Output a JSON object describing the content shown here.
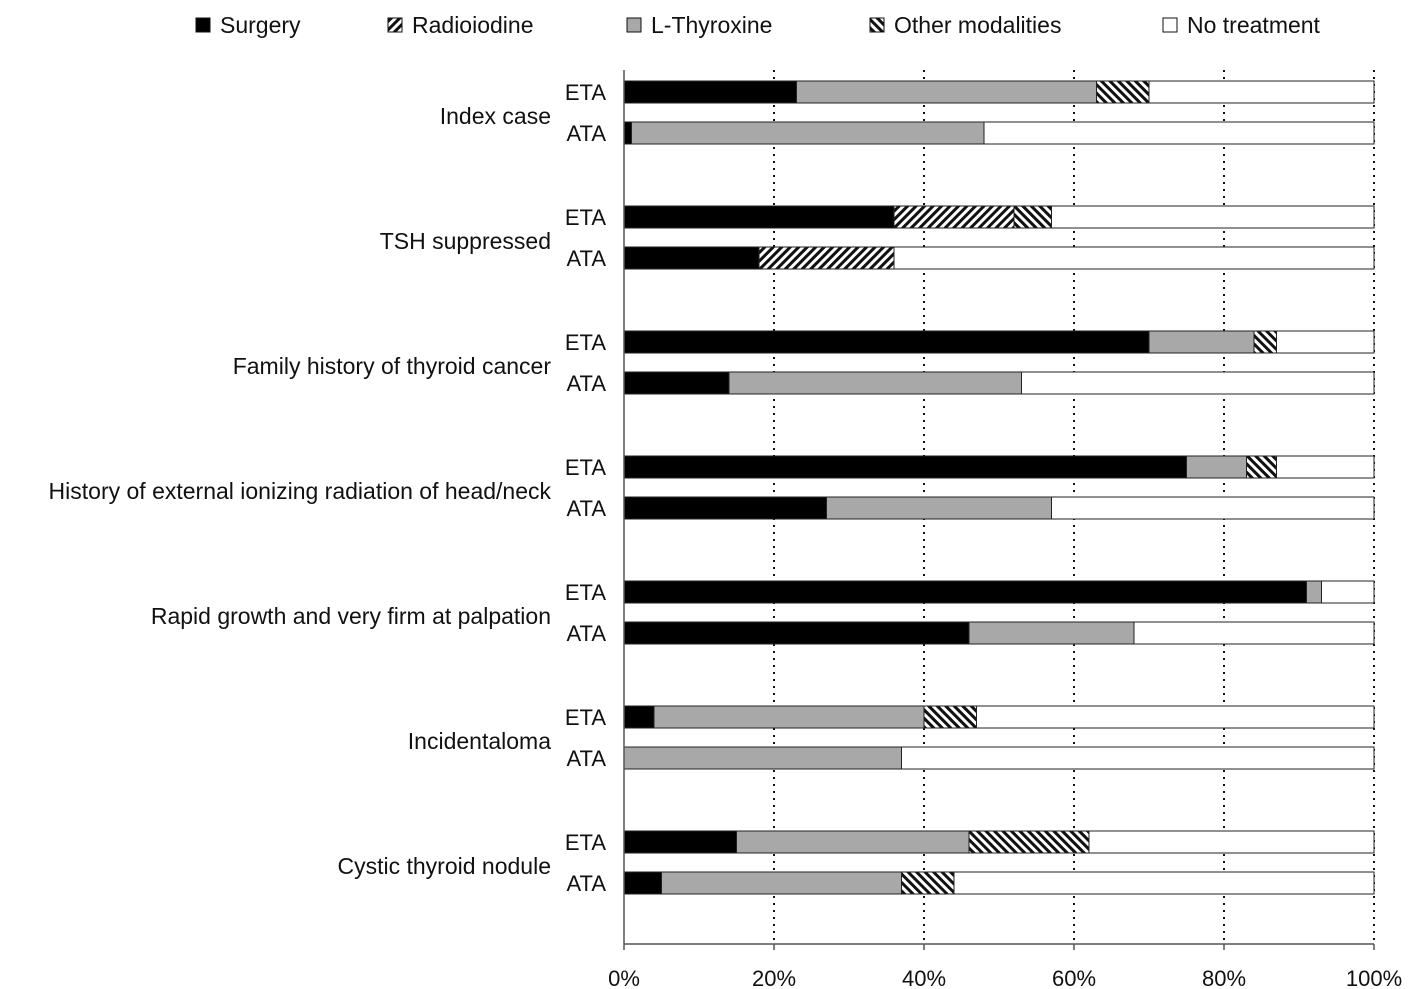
{
  "chart_data": {
    "type": "bar",
    "orientation": "horizontal",
    "stacked": true,
    "normalized": true,
    "xlim": [
      0,
      100
    ],
    "x_ticks": [
      "0%",
      "20%",
      "40%",
      "60%",
      "80%",
      "100%"
    ],
    "grid": "vertical dotted lines at 20% intervals",
    "legend_position": "top",
    "legend": [
      {
        "key": "surgery",
        "label": "Surgery",
        "style": "solid black"
      },
      {
        "key": "radioiodine",
        "label": "Radioiodine",
        "style": "diagonal hatch"
      },
      {
        "key": "lthyroxine",
        "label": "L-Thyroxine",
        "style": "solid grey"
      },
      {
        "key": "other",
        "label": "Other modalities",
        "style": "reverse diagonal hatch"
      },
      {
        "key": "none",
        "label": "No treatment",
        "style": "white"
      }
    ],
    "groups": [
      {
        "label": "Index case",
        "bars": [
          {
            "label": "ETA",
            "values": {
              "surgery": 23,
              "radioiodine": 0,
              "lthyroxine": 40,
              "other": 7,
              "none": 30
            }
          },
          {
            "label": "ATA",
            "values": {
              "surgery": 1,
              "radioiodine": 0,
              "lthyroxine": 47,
              "other": 0,
              "none": 52
            }
          }
        ]
      },
      {
        "label": "TSH suppressed",
        "bars": [
          {
            "label": "ETA",
            "values": {
              "surgery": 36,
              "radioiodine": 16,
              "lthyroxine": 0,
              "other": 5,
              "none": 43
            }
          },
          {
            "label": "ATA",
            "values": {
              "surgery": 18,
              "radioiodine": 18,
              "lthyroxine": 0,
              "other": 0,
              "none": 64
            }
          }
        ]
      },
      {
        "label": "Family history of thyroid cancer",
        "bars": [
          {
            "label": "ETA",
            "values": {
              "surgery": 70,
              "radioiodine": 0,
              "lthyroxine": 14,
              "other": 3,
              "none": 13
            }
          },
          {
            "label": "ATA",
            "values": {
              "surgery": 14,
              "radioiodine": 0,
              "lthyroxine": 39,
              "other": 0,
              "none": 47
            }
          }
        ]
      },
      {
        "label": "History of external ionizing radiation of head/neck",
        "bars": [
          {
            "label": "ETA",
            "values": {
              "surgery": 75,
              "radioiodine": 0,
              "lthyroxine": 8,
              "other": 4,
              "none": 13
            }
          },
          {
            "label": "ATA",
            "values": {
              "surgery": 27,
              "radioiodine": 0,
              "lthyroxine": 30,
              "other": 0,
              "none": 43
            }
          }
        ]
      },
      {
        "label": "Rapid growth and very firm at palpation",
        "bars": [
          {
            "label": "ETA",
            "values": {
              "surgery": 91,
              "radioiodine": 0,
              "lthyroxine": 2,
              "other": 0,
              "none": 7
            }
          },
          {
            "label": "ATA",
            "values": {
              "surgery": 46,
              "radioiodine": 0,
              "lthyroxine": 22,
              "other": 0,
              "none": 32
            }
          }
        ]
      },
      {
        "label": "Incidentaloma",
        "bars": [
          {
            "label": "ETA",
            "values": {
              "surgery": 4,
              "radioiodine": 0,
              "lthyroxine": 36,
              "other": 7,
              "none": 53
            }
          },
          {
            "label": "ATA",
            "values": {
              "surgery": 0,
              "radioiodine": 0,
              "lthyroxine": 37,
              "other": 0,
              "none": 63
            }
          }
        ]
      },
      {
        "label": "Cystic thyroid nodule",
        "bars": [
          {
            "label": "ETA",
            "values": {
              "surgery": 15,
              "radioiodine": 0,
              "lthyroxine": 31,
              "other": 16,
              "none": 38
            }
          },
          {
            "label": "ATA",
            "values": {
              "surgery": 5,
              "radioiodine": 0,
              "lthyroxine": 32,
              "other": 7,
              "none": 56
            }
          }
        ]
      }
    ]
  }
}
